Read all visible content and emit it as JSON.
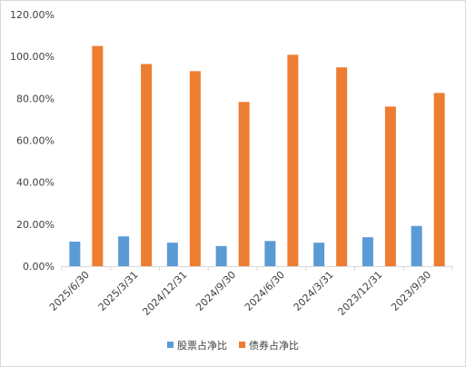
{
  "chart_data": {
    "type": "bar",
    "title": "",
    "xlabel": "",
    "ylabel": "",
    "categories": [
      "2025/6/30",
      "2025/3/31",
      "2024/12/31",
      "2024/9/30",
      "2024/6/30",
      "2024/3/31",
      "2023/12/31",
      "2023/9/30"
    ],
    "series": [
      {
        "name": "股票占净比",
        "color": "#5b9bd5",
        "values": [
          11.7,
          14.2,
          11.2,
          9.6,
          12.0,
          11.2,
          13.8,
          19.2
        ]
      },
      {
        "name": "债券占净比",
        "color": "#ed7d31",
        "values": [
          105.0,
          96.4,
          93.0,
          78.3,
          100.8,
          94.8,
          76.1,
          82.6
        ]
      }
    ],
    "ylim": [
      0,
      120
    ],
    "yticks": [
      "0.00%",
      "20.00%",
      "40.00%",
      "60.00%",
      "80.00%",
      "100.00%",
      "120.00%"
    ],
    "grid": false,
    "legend_position": "bottom"
  }
}
